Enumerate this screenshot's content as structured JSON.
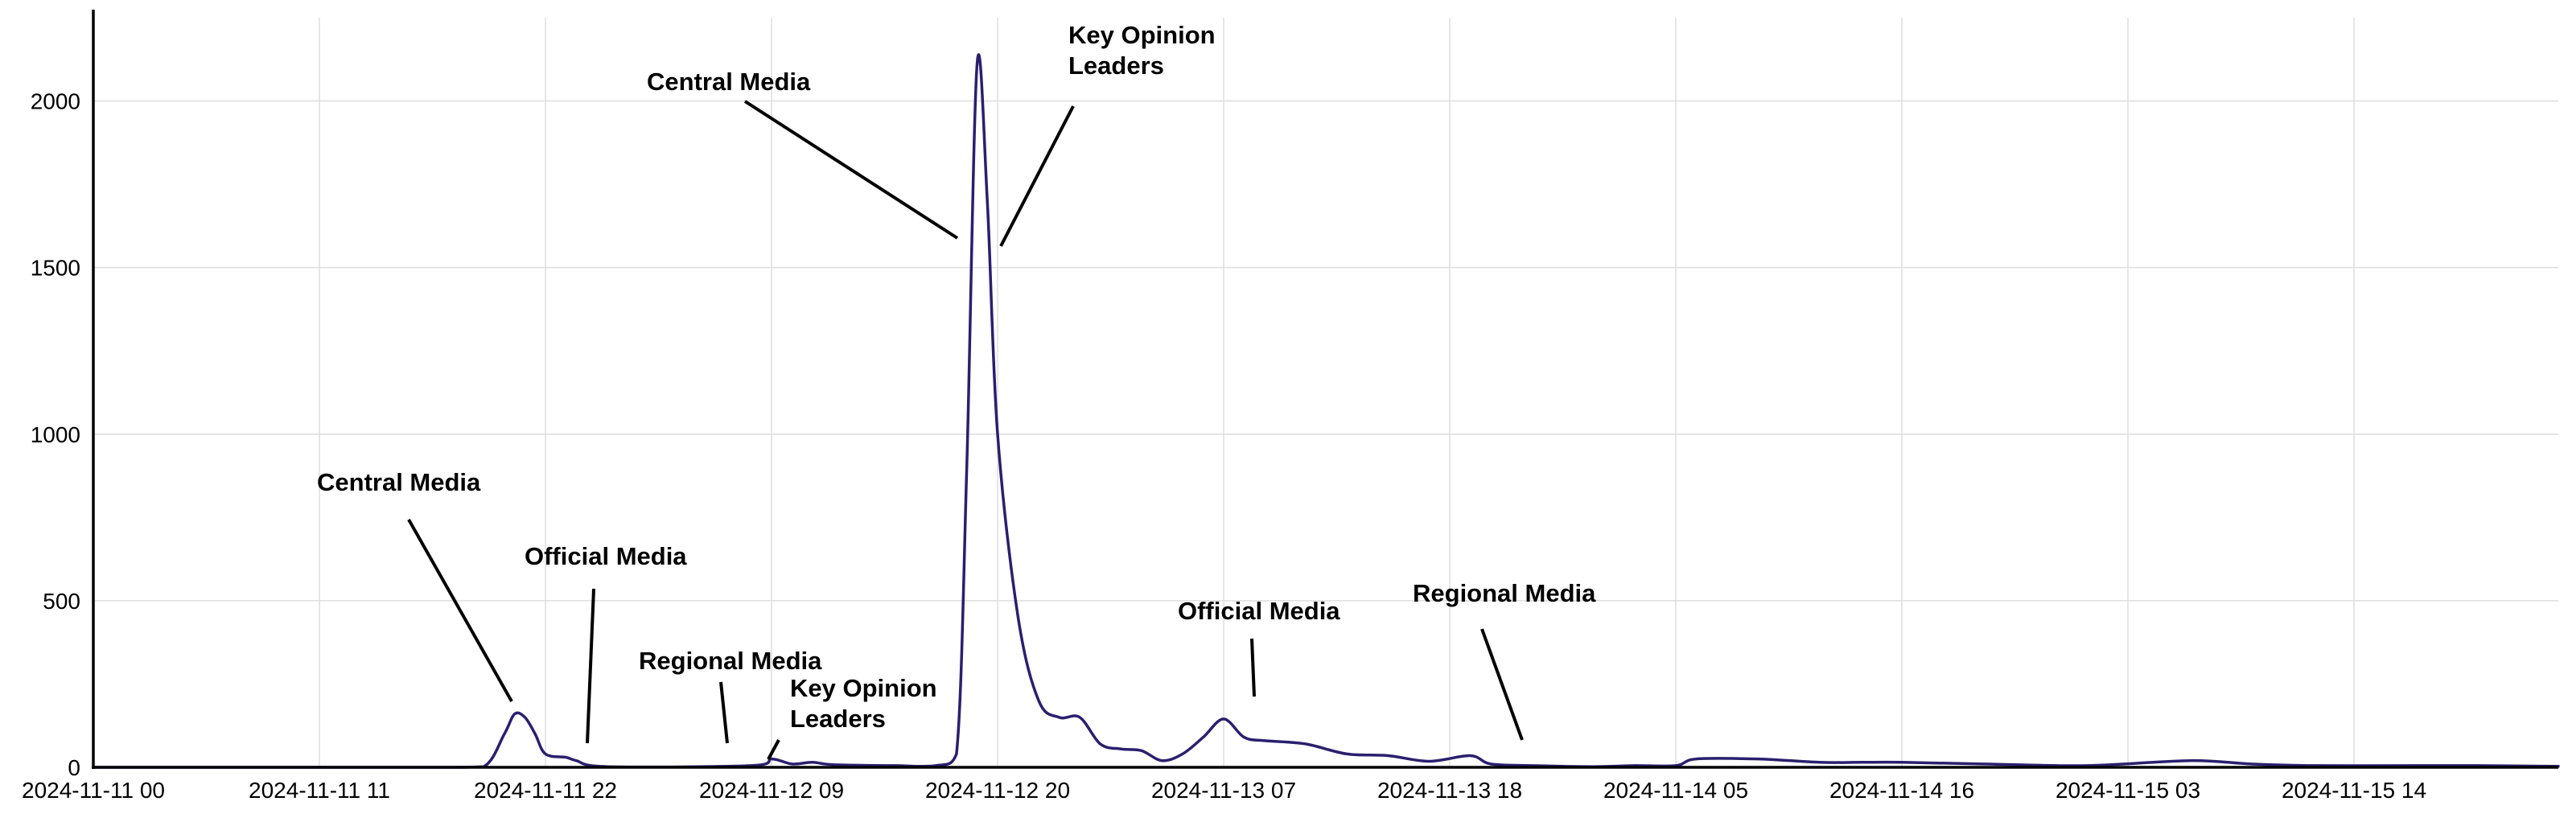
{
  "chart_data": {
    "type": "line",
    "title": "",
    "xlabel": "",
    "ylabel": "",
    "ylim": [
      0,
      2250
    ],
    "yticks": [
      0,
      500,
      1000,
      1500,
      2000
    ],
    "grid": true,
    "legend": "none",
    "colors": {
      "line": "#2a1f6e",
      "grid": "#dddddd"
    },
    "x_tick_labels": [
      "2024-11-11 00",
      "2024-11-11 11",
      "2024-11-11 22",
      "2024-11-12 09",
      "2024-11-12 20",
      "2024-11-13 07",
      "2024-11-13 18",
      "2024-11-14 05",
      "2024-11-14 16",
      "2024-11-15 03",
      "2024-11-15 14"
    ],
    "x_range": [
      "2024-11-11 00:00",
      "2024-11-16 00:00"
    ],
    "series": [
      {
        "color": "#2a1f6e",
        "points": [
          [
            "2024-11-11 00:00",
            0
          ],
          [
            "2024-11-11 06:00",
            0
          ],
          [
            "2024-11-11 12:00",
            0
          ],
          [
            "2024-11-11 17:00",
            0
          ],
          [
            "2024-11-11 19:00",
            2
          ],
          [
            "2024-11-11 20:00",
            100
          ],
          [
            "2024-11-11 20:30",
            160
          ],
          [
            "2024-11-11 21:00",
            150
          ],
          [
            "2024-11-11 21:30",
            100
          ],
          [
            "2024-11-11 22:00",
            40
          ],
          [
            "2024-11-11 23:00",
            30
          ],
          [
            "2024-11-11 23:30",
            20
          ],
          [
            "2024-11-12 01:00",
            2
          ],
          [
            "2024-11-12 08:00",
            5
          ],
          [
            "2024-11-12 09:00",
            25
          ],
          [
            "2024-11-12 10:00",
            10
          ],
          [
            "2024-11-12 11:00",
            15
          ],
          [
            "2024-11-12 12:00",
            8
          ],
          [
            "2024-11-12 15:00",
            5
          ],
          [
            "2024-11-12 17:00",
            5
          ],
          [
            "2024-11-12 18:00",
            40
          ],
          [
            "2024-11-12 18:30",
            900
          ],
          [
            "2024-11-12 19:00",
            2110
          ],
          [
            "2024-11-12 19:30",
            1700
          ],
          [
            "2024-11-12 20:00",
            1000
          ],
          [
            "2024-11-12 21:00",
            450
          ],
          [
            "2024-11-12 22:00",
            200
          ],
          [
            "2024-11-12 23:00",
            150
          ],
          [
            "2024-11-13 00:00",
            150
          ],
          [
            "2024-11-13 01:00",
            70
          ],
          [
            "2024-11-13 02:00",
            55
          ],
          [
            "2024-11-13 03:00",
            50
          ],
          [
            "2024-11-13 04:00",
            20
          ],
          [
            "2024-11-13 05:00",
            40
          ],
          [
            "2024-11-13 06:00",
            90
          ],
          [
            "2024-11-13 07:00",
            145
          ],
          [
            "2024-11-13 08:00",
            90
          ],
          [
            "2024-11-13 09:00",
            80
          ],
          [
            "2024-11-13 11:00",
            70
          ],
          [
            "2024-11-13 13:00",
            40
          ],
          [
            "2024-11-13 15:00",
            35
          ],
          [
            "2024-11-13 17:00",
            18
          ],
          [
            "2024-11-13 19:00",
            35
          ],
          [
            "2024-11-13 20:00",
            10
          ],
          [
            "2024-11-13 22:00",
            5
          ],
          [
            "2024-11-14 01:00",
            2
          ],
          [
            "2024-11-14 03:00",
            5
          ],
          [
            "2024-11-14 05:00",
            5
          ],
          [
            "2024-11-14 06:00",
            25
          ],
          [
            "2024-11-14 09:00",
            25
          ],
          [
            "2024-11-14 12:00",
            15
          ],
          [
            "2024-11-14 14:00",
            15
          ],
          [
            "2024-11-14 16:00",
            15
          ],
          [
            "2024-11-14 20:00",
            10
          ],
          [
            "2024-11-15 01:00",
            5
          ],
          [
            "2024-11-15 06:00",
            20
          ],
          [
            "2024-11-15 09:00",
            10
          ],
          [
            "2024-11-15 12:00",
            5
          ],
          [
            "2024-11-15 17:00",
            5
          ],
          [
            "2024-11-15 20:00",
            5
          ],
          [
            "2024-11-16 00:00",
            3
          ]
        ]
      }
    ],
    "annotations": [
      {
        "text": "Central Media",
        "x": "2024-11-11 20:30",
        "y": 160
      },
      {
        "text": "Official Media",
        "x": "2024-11-11 23:00",
        "y": 30
      },
      {
        "text": "Regional Media",
        "x": "2024-11-12 09:00",
        "y": 25
      },
      {
        "text": "Key Opinion Leaders",
        "x": "2024-11-12 11:00",
        "y": 15
      },
      {
        "text": "Central Media",
        "x": "2024-11-12 18:45",
        "y": 1600
      },
      {
        "text": "Key Opinion Leaders",
        "x": "2024-11-12 19:45",
        "y": 1570
      },
      {
        "text": "Official Media",
        "x": "2024-11-13 07:00",
        "y": 145
      },
      {
        "text": "Regional Media",
        "x": "2024-11-13 19:00",
        "y": 35
      }
    ]
  }
}
